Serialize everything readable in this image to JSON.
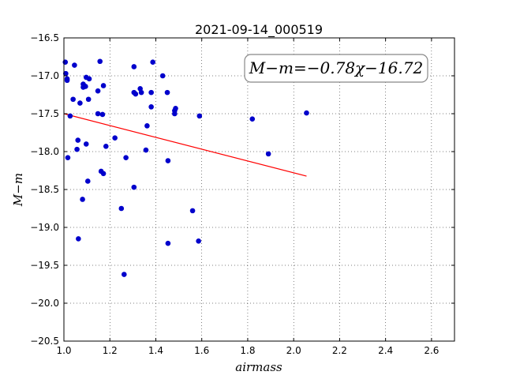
{
  "chart_data": {
    "type": "scatter",
    "title": "2021-09-14_000519",
    "xlabel": "airmass",
    "ylabel": "M−m",
    "xlim": [
      1.0,
      2.7
    ],
    "ylim": [
      -20.5,
      -16.5
    ],
    "y_inverted": true,
    "grid": true,
    "x_ticks": [
      "1.0",
      "1.2",
      "1.4",
      "1.6",
      "1.8",
      "2.0",
      "2.2",
      "2.4",
      "2.6"
    ],
    "y_ticks": [
      "−16.5",
      "−17.0",
      "−17.5",
      "−18.0",
      "−18.5",
      "−19.0",
      "−19.5",
      "−20.0",
      "−20.5"
    ],
    "annotation": "M−m=−0.78χ−16.72",
    "points_color": "#0000cc",
    "fit_color": "#ff0000",
    "points": [
      [
        1.006,
        -16.82
      ],
      [
        1.046,
        -16.86
      ],
      [
        1.008,
        -16.97
      ],
      [
        1.014,
        -17.06
      ],
      [
        1.014,
        -17.04
      ],
      [
        1.04,
        -17.31
      ],
      [
        1.07,
        -17.36
      ],
      [
        1.084,
        -17.11
      ],
      [
        1.084,
        -17.15
      ],
      [
        1.094,
        -17.14
      ],
      [
        1.097,
        -17.02
      ],
      [
        1.11,
        -17.04
      ],
      [
        1.107,
        -17.31
      ],
      [
        1.027,
        -17.53
      ],
      [
        1.148,
        -17.2
      ],
      [
        1.157,
        -16.81
      ],
      [
        1.172,
        -17.13
      ],
      [
        1.148,
        -17.5
      ],
      [
        1.168,
        -17.51
      ],
      [
        1.061,
        -17.85
      ],
      [
        1.057,
        -17.97
      ],
      [
        1.097,
        -17.9
      ],
      [
        1.183,
        -17.93
      ],
      [
        1.222,
        -17.82
      ],
      [
        1.017,
        -18.08
      ],
      [
        1.162,
        -18.26
      ],
      [
        1.172,
        -18.29
      ],
      [
        1.104,
        -18.39
      ],
      [
        1.081,
        -18.63
      ],
      [
        1.27,
        -18.08
      ],
      [
        1.305,
        -16.88
      ],
      [
        1.305,
        -17.22
      ],
      [
        1.312,
        -17.24
      ],
      [
        1.332,
        -17.17
      ],
      [
        1.337,
        -17.22
      ],
      [
        1.38,
        -17.22
      ],
      [
        1.387,
        -16.82
      ],
      [
        1.43,
        -17.0
      ],
      [
        1.45,
        -17.22
      ],
      [
        1.38,
        -17.41
      ],
      [
        1.362,
        -17.66
      ],
      [
        1.482,
        -17.46
      ],
      [
        1.486,
        -17.43
      ],
      [
        1.482,
        -17.5
      ],
      [
        1.357,
        -17.98
      ],
      [
        1.453,
        -18.12
      ],
      [
        1.305,
        -18.47
      ],
      [
        1.25,
        -18.75
      ],
      [
        1.063,
        -19.15
      ],
      [
        1.262,
        -19.62
      ],
      [
        1.56,
        -18.78
      ],
      [
        1.586,
        -19.18
      ],
      [
        1.453,
        -19.21
      ],
      [
        1.59,
        -17.53
      ],
      [
        1.82,
        -17.57
      ],
      [
        1.89,
        -18.03
      ],
      [
        2.056,
        -17.49
      ]
    ],
    "fit": {
      "slope": -0.78,
      "intercept": -16.72,
      "x_range": [
        1.0,
        2.056
      ]
    }
  }
}
